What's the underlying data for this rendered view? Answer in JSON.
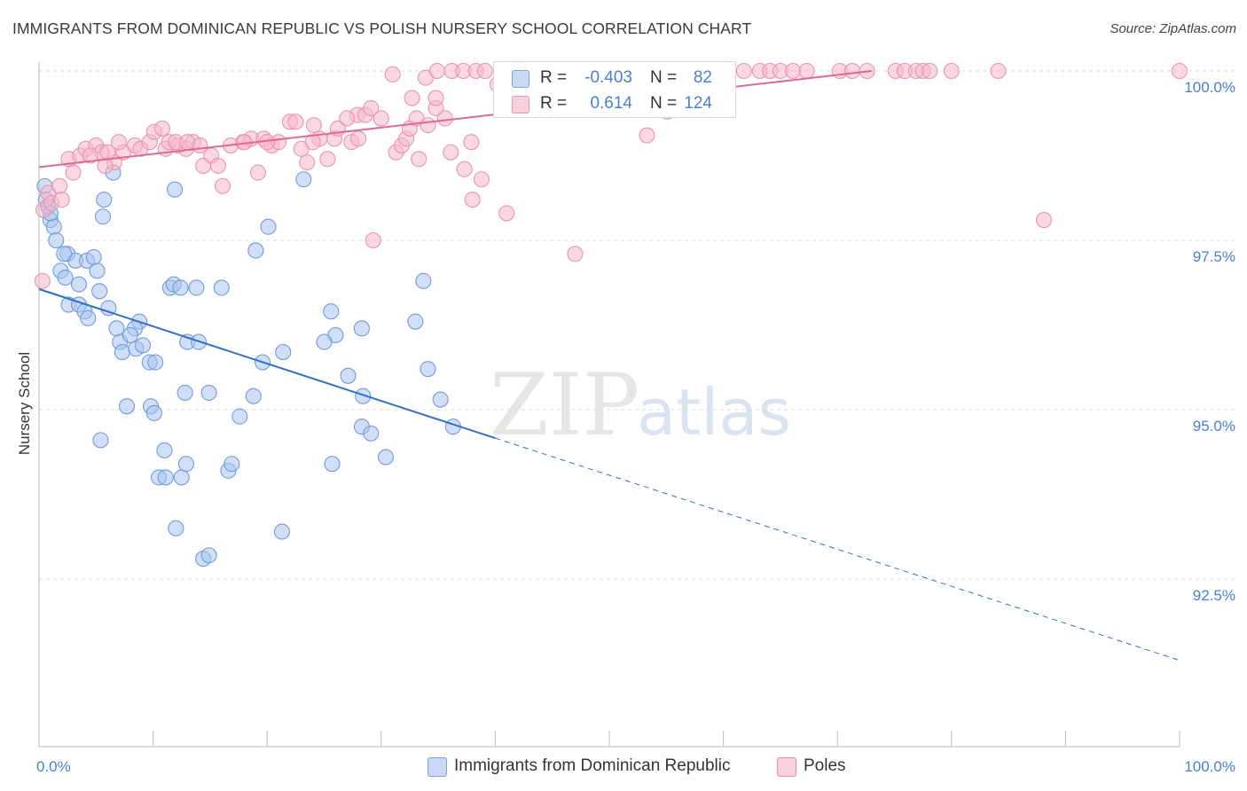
{
  "title": "IMMIGRANTS FROM DOMINICAN REPUBLIC VS POLISH NURSERY SCHOOL CORRELATION CHART",
  "source": "Source: ZipAtlas.com",
  "watermark": {
    "zip": "ZIP",
    "atlas": "atlas"
  },
  "colors": {
    "blue_fill": "#a9c4ec",
    "blue_stroke": "#6f9be0",
    "blue_line": "#2a6fd1",
    "pink_fill": "#f5b8cb",
    "pink_stroke": "#ec93b0",
    "pink_line": "#e2668f",
    "tick_label": "#4a7fd4",
    "grid": "#dcdcdc"
  },
  "legend": {
    "rows": [
      {
        "r_label": "R =",
        "r_value": "-0.403",
        "n_label": "N =",
        "n_value": "82",
        "color": "#a9c4ec"
      },
      {
        "r_label": "R =",
        "r_value": "0.614",
        "n_label": "N =",
        "n_value": "124",
        "color": "#f5b8cb"
      }
    ]
  },
  "bottom_legend": [
    {
      "label": "Immigrants from Dominican Republic",
      "color": "#a9c4ec"
    },
    {
      "label": "Poles",
      "color": "#f5b8cb"
    }
  ],
  "chart_data": {
    "type": "scatter",
    "title": "IMMIGRANTS FROM DOMINICAN REPUBLIC VS POLISH NURSERY SCHOOL CORRELATION CHART",
    "xlabel": "",
    "ylabel": "Nursery School",
    "xlim": [
      0,
      100
    ],
    "ylim": [
      90.5,
      100.3
    ],
    "x_tick_labels": [
      {
        "value": 0,
        "label": "0.0%"
      },
      {
        "value": 100,
        "label": "100.0%"
      }
    ],
    "y_ticks": [
      {
        "value": 100.0,
        "label": "100.0%"
      },
      {
        "value": 97.5,
        "label": "97.5%"
      },
      {
        "value": 95.0,
        "label": "95.0%"
      },
      {
        "value": 92.5,
        "label": "92.5%"
      }
    ],
    "x_minor_ticks": [
      0,
      10,
      20,
      30,
      40,
      50,
      60,
      70,
      80,
      90,
      100
    ],
    "grid": true,
    "series": [
      {
        "name": "Immigrants from Dominican Republic",
        "color": "#a9c4ec",
        "trend": {
          "x0": 0,
          "y0": 96.78,
          "x1": 40,
          "y1": 94.58,
          "dashed_to_x": 100,
          "dashed_to_y": 91.3
        },
        "points": [
          [
            0.5,
            98.3
          ],
          [
            0.8,
            98.0
          ],
          [
            1.0,
            97.8
          ],
          [
            1.3,
            97.7
          ],
          [
            1.5,
            97.5
          ],
          [
            2.5,
            97.3
          ],
          [
            1.9,
            97.05
          ],
          [
            2.3,
            96.95
          ],
          [
            3.2,
            97.2
          ],
          [
            3.5,
            96.85
          ],
          [
            4.2,
            97.2
          ],
          [
            4.8,
            97.25
          ],
          [
            5.1,
            97.05
          ],
          [
            5.3,
            96.75
          ],
          [
            2.6,
            96.55
          ],
          [
            3.5,
            96.55
          ],
          [
            4.0,
            96.45
          ],
          [
            4.3,
            96.35
          ],
          [
            6.5,
            98.5
          ],
          [
            5.7,
            98.1
          ],
          [
            5.6,
            97.85
          ],
          [
            8.8,
            96.3
          ],
          [
            8.4,
            96.2
          ],
          [
            6.8,
            96.2
          ],
          [
            7.1,
            96.0
          ],
          [
            7.3,
            95.85
          ],
          [
            8.5,
            95.9
          ],
          [
            9.7,
            95.7
          ],
          [
            10.2,
            95.7
          ],
          [
            13.0,
            96.0
          ],
          [
            14.0,
            96.0
          ],
          [
            11.5,
            96.8
          ],
          [
            11.8,
            96.85
          ],
          [
            12.4,
            96.8
          ],
          [
            13.8,
            96.8
          ],
          [
            16.0,
            96.8
          ],
          [
            11.9,
            98.25
          ],
          [
            19.0,
            97.35
          ],
          [
            20.1,
            97.7
          ],
          [
            23.2,
            98.4
          ],
          [
            7.7,
            95.05
          ],
          [
            9.8,
            95.05
          ],
          [
            10.1,
            94.95
          ],
          [
            12.8,
            95.25
          ],
          [
            14.9,
            95.25
          ],
          [
            18.8,
            95.2
          ],
          [
            17.6,
            94.9
          ],
          [
            19.6,
            95.7
          ],
          [
            21.4,
            95.85
          ],
          [
            11.0,
            94.4
          ],
          [
            10.5,
            94.0
          ],
          [
            11.1,
            94.0
          ],
          [
            12.5,
            94.0
          ],
          [
            12.9,
            94.2
          ],
          [
            16.6,
            94.1
          ],
          [
            16.9,
            94.2
          ],
          [
            5.4,
            94.55
          ],
          [
            12.0,
            93.25
          ],
          [
            21.3,
            93.2
          ],
          [
            14.4,
            92.8
          ],
          [
            14.9,
            92.85
          ],
          [
            25.6,
            96.45
          ],
          [
            26.0,
            96.1
          ],
          [
            25.0,
            96.0
          ],
          [
            27.1,
            95.5
          ],
          [
            28.4,
            95.2
          ],
          [
            28.3,
            96.2
          ],
          [
            28.3,
            94.75
          ],
          [
            29.1,
            94.65
          ],
          [
            25.7,
            94.2
          ],
          [
            30.4,
            94.3
          ],
          [
            33.0,
            96.3
          ],
          [
            33.7,
            96.9
          ],
          [
            34.1,
            95.6
          ],
          [
            35.2,
            95.15
          ],
          [
            36.3,
            94.75
          ],
          [
            1.0,
            97.9
          ],
          [
            0.6,
            98.1
          ],
          [
            2.2,
            97.3
          ],
          [
            6.1,
            96.5
          ],
          [
            8.0,
            96.1
          ],
          [
            9.1,
            95.95
          ]
        ]
      },
      {
        "name": "Poles",
        "color": "#f5b8cb",
        "trend": {
          "x0": 0,
          "y0": 98.58,
          "x1": 73,
          "y1": 100.0
        },
        "points": [
          [
            0.3,
            96.9
          ],
          [
            0.8,
            98.2
          ],
          [
            1.8,
            98.3
          ],
          [
            2.6,
            98.7
          ],
          [
            3.6,
            98.75
          ],
          [
            4.1,
            98.85
          ],
          [
            5.0,
            98.9
          ],
          [
            5.5,
            98.8
          ],
          [
            6.6,
            98.65
          ],
          [
            5.8,
            98.6
          ],
          [
            7.4,
            98.8
          ],
          [
            8.4,
            98.9
          ],
          [
            8.9,
            98.85
          ],
          [
            9.7,
            98.95
          ],
          [
            10.1,
            99.1
          ],
          [
            10.8,
            99.15
          ],
          [
            11.1,
            98.85
          ],
          [
            11.4,
            98.95
          ],
          [
            12.2,
            98.9
          ],
          [
            12.9,
            98.85
          ],
          [
            13.5,
            98.95
          ],
          [
            14.1,
            98.9
          ],
          [
            14.4,
            98.6
          ],
          [
            15.1,
            98.75
          ],
          [
            15.7,
            98.6
          ],
          [
            16.1,
            98.3
          ],
          [
            16.8,
            98.9
          ],
          [
            17.9,
            98.95
          ],
          [
            18.6,
            99.0
          ],
          [
            19.2,
            98.5
          ],
          [
            19.7,
            99.0
          ],
          [
            20.4,
            98.9
          ],
          [
            21.0,
            98.95
          ],
          [
            22.0,
            99.25
          ],
          [
            22.5,
            99.25
          ],
          [
            23.0,
            98.85
          ],
          [
            23.5,
            98.65
          ],
          [
            24.1,
            99.2
          ],
          [
            24.6,
            99.0
          ],
          [
            25.3,
            98.7
          ],
          [
            25.9,
            99.0
          ],
          [
            26.2,
            99.15
          ],
          [
            27.4,
            98.95
          ],
          [
            27.9,
            99.35
          ],
          [
            28.6,
            99.35
          ],
          [
            29.1,
            99.45
          ],
          [
            30.0,
            99.3
          ],
          [
            31.3,
            98.8
          ],
          [
            31.8,
            98.9
          ],
          [
            32.2,
            99.0
          ],
          [
            32.5,
            99.15
          ],
          [
            33.1,
            99.3
          ],
          [
            34.1,
            99.2
          ],
          [
            34.8,
            99.45
          ],
          [
            35.6,
            99.3
          ],
          [
            36.1,
            98.8
          ],
          [
            37.3,
            98.55
          ],
          [
            37.9,
            98.95
          ],
          [
            38.8,
            98.4
          ],
          [
            29.3,
            97.5
          ],
          [
            31.0,
            99.95
          ],
          [
            32.7,
            99.6
          ],
          [
            33.9,
            99.9
          ],
          [
            34.9,
            100.0
          ],
          [
            36.2,
            100.0
          ],
          [
            37.2,
            100.0
          ],
          [
            38.3,
            100.0
          ],
          [
            39.1,
            100.0
          ],
          [
            40.2,
            99.8
          ],
          [
            41.0,
            99.6
          ],
          [
            42.0,
            100.0
          ],
          [
            43.0,
            99.5
          ],
          [
            44.8,
            100.0
          ],
          [
            46.0,
            100.0
          ],
          [
            47.0,
            100.0
          ],
          [
            48.7,
            100.0
          ],
          [
            50.2,
            100.0
          ],
          [
            51.3,
            100.0
          ],
          [
            52.5,
            100.0
          ],
          [
            53.8,
            100.0
          ],
          [
            55.2,
            100.0
          ],
          [
            57.0,
            100.0
          ],
          [
            58.4,
            100.0
          ],
          [
            59.1,
            100.0
          ],
          [
            60.3,
            100.0
          ],
          [
            61.8,
            100.0
          ],
          [
            63.2,
            100.0
          ],
          [
            64.1,
            100.0
          ],
          [
            65.0,
            100.0
          ],
          [
            66.1,
            100.0
          ],
          [
            67.3,
            100.0
          ],
          [
            70.2,
            100.0
          ],
          [
            71.3,
            100.0
          ],
          [
            72.6,
            100.0
          ],
          [
            75.1,
            100.0
          ],
          [
            75.9,
            100.0
          ],
          [
            76.9,
            100.0
          ],
          [
            77.5,
            100.0
          ],
          [
            78.1,
            100.0
          ],
          [
            80.0,
            100.0
          ],
          [
            84.1,
            100.0
          ],
          [
            100.0,
            100.0
          ],
          [
            27.0,
            99.3
          ],
          [
            33.3,
            98.7
          ],
          [
            38.0,
            98.1
          ],
          [
            41.0,
            97.9
          ],
          [
            47.0,
            97.3
          ],
          [
            53.3,
            99.05
          ],
          [
            55.1,
            99.4
          ],
          [
            88.1,
            97.8
          ],
          [
            34.8,
            99.6
          ],
          [
            0.4,
            97.95
          ],
          [
            1.1,
            98.05
          ],
          [
            2.0,
            98.1
          ],
          [
            3.0,
            98.5
          ],
          [
            4.5,
            98.75
          ],
          [
            6.0,
            98.8
          ],
          [
            7.0,
            98.95
          ],
          [
            12.0,
            98.95
          ],
          [
            13.0,
            98.95
          ],
          [
            18.0,
            98.95
          ],
          [
            20.0,
            98.95
          ],
          [
            24.0,
            98.95
          ],
          [
            28.0,
            99.0
          ]
        ]
      }
    ]
  }
}
